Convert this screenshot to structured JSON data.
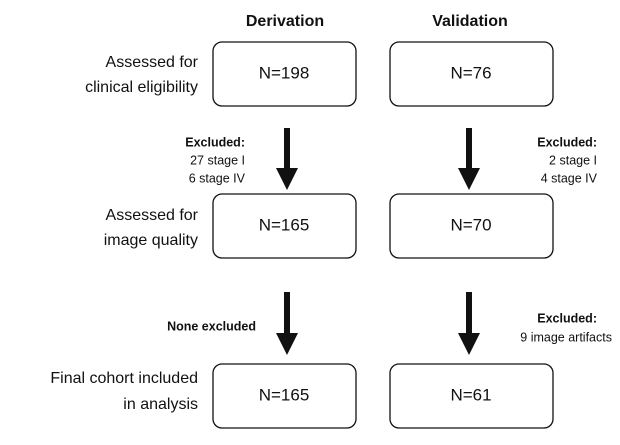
{
  "columns": [
    "Derivation",
    "Validation"
  ],
  "rows": [
    {
      "label": [
        "Assessed for",
        "clinical eligibility"
      ],
      "boxes": [
        "N=198",
        "N=76"
      ]
    },
    {
      "label": [
        "Assessed for",
        "image quality"
      ],
      "boxes": [
        "N=165",
        "N=70"
      ]
    },
    {
      "label": [
        "Final cohort included",
        "in analysis"
      ],
      "boxes": [
        "N=165",
        "N=61"
      ]
    }
  ],
  "transitions": [
    {
      "derivation": {
        "heading": "Excluded:",
        "lines": [
          "27 stage I",
          "6 stage IV"
        ]
      },
      "validation": {
        "heading": "Excluded:",
        "lines": [
          "2 stage I",
          "4 stage IV"
        ]
      }
    },
    {
      "derivation": {
        "heading": "None excluded"
      },
      "validation": {
        "heading": "Excluded:",
        "lines": [
          "9 image artifacts"
        ]
      }
    }
  ]
}
